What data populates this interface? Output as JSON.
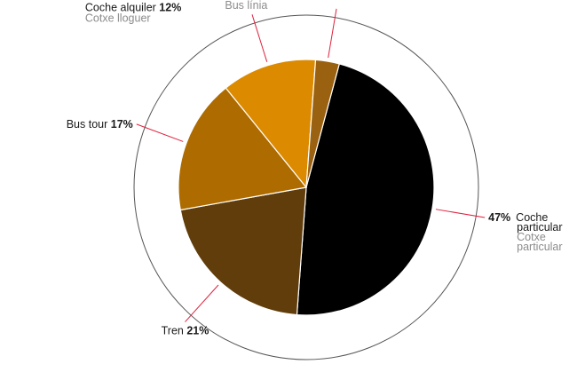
{
  "chart_data": {
    "type": "pie",
    "title": "",
    "slices": [
      {
        "label": "Coche particular",
        "label_ca": "Cotxe particular",
        "value": 47,
        "pct_label": "47%",
        "color": "#000000"
      },
      {
        "label": "Tren",
        "label_ca": "",
        "value": 21,
        "pct_label": "21%",
        "color": "#603d0a"
      },
      {
        "label": "Bus tour",
        "label_ca": "",
        "value": 17,
        "pct_label": "17%",
        "color": "#ad6b00"
      },
      {
        "label": "Coche alquiler",
        "label_ca": "Cotxe lloguer",
        "value": 12,
        "pct_label": "12%",
        "color": "#dc8a00"
      },
      {
        "label": "Bus línea",
        "label_ca": "Bus línia",
        "value": 3,
        "pct_label": "3%",
        "color": "#9a6110"
      }
    ],
    "leader_color": "#e0203c",
    "outer_ring_color": "#555555"
  }
}
